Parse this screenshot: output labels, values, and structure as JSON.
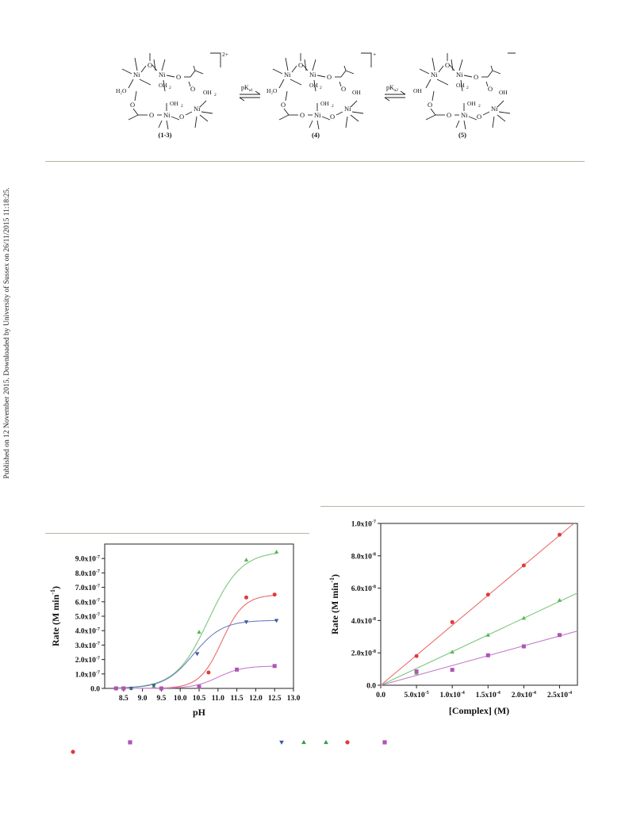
{
  "sidebar_note": "Published on 12 November 2015. Downloaded by University of Sussex on 26/11/2015 11:18:25.",
  "scheme": {
    "complex_a": "(1-3)",
    "complex_b": "(4)",
    "complex_c": "(5)",
    "charge_a": "2+",
    "charge_b": "+",
    "pka1": "pK",
    "pka1_sub": "a1",
    "pka2": "pK",
    "pka2_sub": "a2",
    "ni": "Ni",
    "o": "O",
    "oh2": "OH",
    "sub2": "2",
    "h2o": "H",
    "oh": "OH"
  },
  "chart_data": [
    {
      "type": "line",
      "xlabel": "pH",
      "ylabel": "Rate (M min",
      "ylabel_sup": "-1",
      "ylabel_end": ")",
      "xlim": [
        8.0,
        13.0
      ],
      "ylim": [
        0,
        1e-06
      ],
      "x_ticks": [
        "8.5",
        "9.0",
        "9.5",
        "10.0",
        "10.5",
        "11.0",
        "11.5",
        "12.0",
        "12.5",
        "13.0"
      ],
      "y_ticks": [
        {
          "m": "0.0",
          "e": ""
        },
        {
          "m": "1.0x10",
          "e": "-7"
        },
        {
          "m": "2.0x10",
          "e": "-7"
        },
        {
          "m": "3.0x10",
          "e": "-7"
        },
        {
          "m": "4.0x10",
          "e": "-7"
        },
        {
          "m": "5.0x10",
          "e": "-7"
        },
        {
          "m": "6.0x10",
          "e": "-7"
        },
        {
          "m": "7.0x10",
          "e": "-7"
        },
        {
          "m": "8.0x10",
          "e": "-7"
        },
        {
          "m": "9.0x10",
          "e": "-7"
        }
      ],
      "series": [
        {
          "marker": "triangle-up",
          "color": "#58b858",
          "line_color": "#7cc77c",
          "points": [
            [
              8.3,
              0
            ],
            [
              8.5,
              0
            ],
            [
              8.7,
              0
            ],
            [
              9.3,
              1.5e-08
            ],
            [
              10.5,
              3.9e-07
            ],
            [
              11.75,
              8.9e-07
            ],
            [
              12.55,
              9.45e-07
            ]
          ],
          "curve": {
            "bottom": 0,
            "top": 9.5e-07,
            "pka": 10.75,
            "k": 2.3
          }
        },
        {
          "marker": "circle",
          "color": "#e03a3a",
          "line_color": "#ea6b6b",
          "points": [
            [
              8.3,
              0
            ],
            [
              8.5,
              0
            ],
            [
              9.5,
              0
            ],
            [
              10.75,
              1.1e-07
            ],
            [
              11.75,
              6.3e-07
            ],
            [
              12.5,
              6.5e-07
            ]
          ],
          "curve": {
            "bottom": 0,
            "top": 6.5e-07,
            "pka": 11.1,
            "k": 3.4
          }
        },
        {
          "marker": "triangle-down",
          "color": "#3d57a3",
          "line_color": "#6f7fc0",
          "points": [
            [
              8.3,
              0
            ],
            [
              8.5,
              0
            ],
            [
              8.7,
              0
            ],
            [
              9.3,
              2e-08
            ],
            [
              10.45,
              2.4e-07
            ],
            [
              11.75,
              4.6e-07
            ],
            [
              12.55,
              4.7e-07
            ]
          ],
          "curve": {
            "bottom": 0,
            "top": 4.72e-07,
            "pka": 10.35,
            "k": 2.6
          }
        },
        {
          "marker": "square",
          "color": "#b054b4",
          "line_color": "#c47ec8",
          "points": [
            [
              8.3,
              0
            ],
            [
              8.5,
              0
            ],
            [
              9.5,
              0
            ],
            [
              10.5,
              1.2e-08
            ],
            [
              11.5,
              1.3e-07
            ],
            [
              12.5,
              1.55e-07
            ]
          ],
          "curve": {
            "bottom": 0,
            "top": 1.55e-07,
            "pka": 11.0,
            "k": 3.1
          }
        }
      ]
    },
    {
      "type": "scatter",
      "xlabel": "[Complex] (M)",
      "ylabel": "Rate (M min",
      "ylabel_sup": "-1",
      "ylabel_end": ")",
      "xlim": [
        0,
        0.000275
      ],
      "ylim": [
        0,
        1e-07
      ],
      "x_ticks": [
        {
          "v": 0,
          "m": "0.0",
          "e": ""
        },
        {
          "v": 5e-05,
          "m": "5.0x10",
          "e": "-5"
        },
        {
          "v": 0.0001,
          "m": "1.0x10",
          "e": "-4"
        },
        {
          "v": 0.00015,
          "m": "1.5x10",
          "e": "-4"
        },
        {
          "v": 0.0002,
          "m": "2.0x10",
          "e": "-4"
        },
        {
          "v": 0.00025,
          "m": "2.5x10",
          "e": "-4"
        }
      ],
      "y_ticks": [
        {
          "v": 0,
          "m": "0.0",
          "e": ""
        },
        {
          "v": 2e-08,
          "m": "2.0x10",
          "e": "-8"
        },
        {
          "v": 4e-08,
          "m": "4.0x10",
          "e": "-8"
        },
        {
          "v": 6e-08,
          "m": "6.0x10",
          "e": "-8"
        },
        {
          "v": 8e-08,
          "m": "8.0x10",
          "e": "-8"
        },
        {
          "v": 1e-07,
          "m": "1.0x10",
          "e": "-7"
        }
      ],
      "series": [
        {
          "marker": "circle",
          "color": "#e03a3a",
          "line_color": "#ea6b6b",
          "points": [
            [
              5e-05,
              1.8e-08
            ],
            [
              0.0001,
              3.9e-08
            ],
            [
              0.00015,
              5.6e-08
            ],
            [
              0.0002,
              7.4e-08
            ],
            [
              0.00025,
              9.3e-08
            ]
          ],
          "fit": [
            [
              0,
              0
            ],
            [
              0.00027,
              1e-07
            ]
          ]
        },
        {
          "marker": "triangle-up",
          "color": "#58b858",
          "line_color": "#7cc77c",
          "points": [
            [
              5e-05,
              7.5e-09
            ],
            [
              0.0001,
              2.05e-08
            ],
            [
              0.00015,
              3.1e-08
            ],
            [
              0.0002,
              4.15e-08
            ],
            [
              0.00025,
              5.25e-08
            ]
          ],
          "fit": [
            [
              0,
              0
            ],
            [
              0.000275,
              5.7e-08
            ]
          ]
        },
        {
          "marker": "square",
          "color": "#b054b4",
          "line_color": "#c47ec8",
          "points": [
            [
              5e-05,
              8.5e-09
            ],
            [
              0.0001,
              9.5e-09
            ],
            [
              0.00015,
              1.85e-08
            ],
            [
              0.0002,
              2.4e-08
            ],
            [
              0.00025,
              3.1e-08
            ]
          ],
          "fit": [
            [
              0,
              0
            ],
            [
              0.000275,
              3.35e-08
            ]
          ]
        }
      ]
    }
  ],
  "legend_markers": [
    {
      "marker": "circle",
      "color": "#e03a3a"
    },
    {
      "marker": "square",
      "color": "#b054b4"
    },
    {
      "marker": "triangle-down",
      "color": "#3d57a3"
    },
    {
      "marker": "triangle-up",
      "color": "#2e9e43"
    },
    {
      "marker": "triangle-up",
      "color": "#2e9e43"
    },
    {
      "marker": "circle",
      "color": "#e03a3a"
    },
    {
      "marker": "square",
      "color": "#b054b4"
    }
  ]
}
